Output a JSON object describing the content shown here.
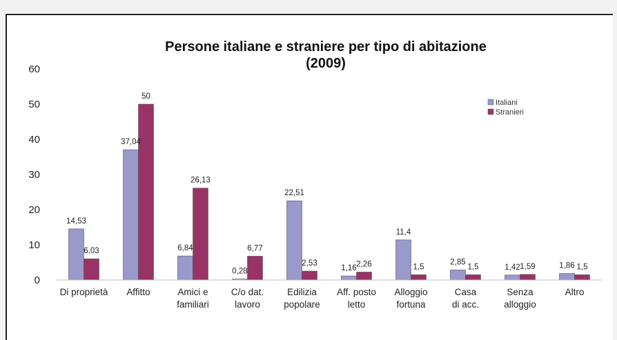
{
  "chart_data": {
    "type": "bar",
    "title": "Persone italiane e straniere per tipo di abitazione",
    "subtitle": "(2009)",
    "categories": [
      [
        "Di proprietà"
      ],
      [
        "Affitto"
      ],
      [
        "Amici e",
        "familiari"
      ],
      [
        "C/o dat.",
        "lavoro"
      ],
      [
        "Edilizia",
        "popolare"
      ],
      [
        "Aff. posto",
        "letto"
      ],
      [
        "Alloggio",
        "fortuna"
      ],
      [
        "Casa",
        "di acc."
      ],
      [
        "Senza",
        "alloggio"
      ],
      [
        "Altro"
      ]
    ],
    "series": [
      {
        "name": "Italiani",
        "color": "#9999cc",
        "values": [
          14.53,
          37.04,
          6.84,
          0.28,
          22.51,
          1.16,
          11.4,
          2.85,
          1.42,
          1.86
        ],
        "labels": [
          "14,53",
          "37,04",
          "6,84",
          "0,28",
          "22,51",
          "1,16",
          "11,4",
          "2,85",
          "1,42",
          "1,86"
        ]
      },
      {
        "name": "Stranieri",
        "color": "#993366",
        "values": [
          6.03,
          50,
          26.13,
          6.77,
          2.53,
          2.26,
          1.5,
          1.5,
          1.59,
          1.5
        ],
        "labels": [
          "6,03",
          "50",
          "26,13",
          "6,77",
          "2,53",
          "2,26",
          "1,5",
          "1,5",
          "1,59",
          "1,5"
        ]
      }
    ],
    "yticks": [
      "0",
      "10",
      "20",
      "30",
      "40",
      "50",
      "60"
    ],
    "ylim": [
      0,
      60
    ],
    "grid": false,
    "legend": "top-right"
  }
}
